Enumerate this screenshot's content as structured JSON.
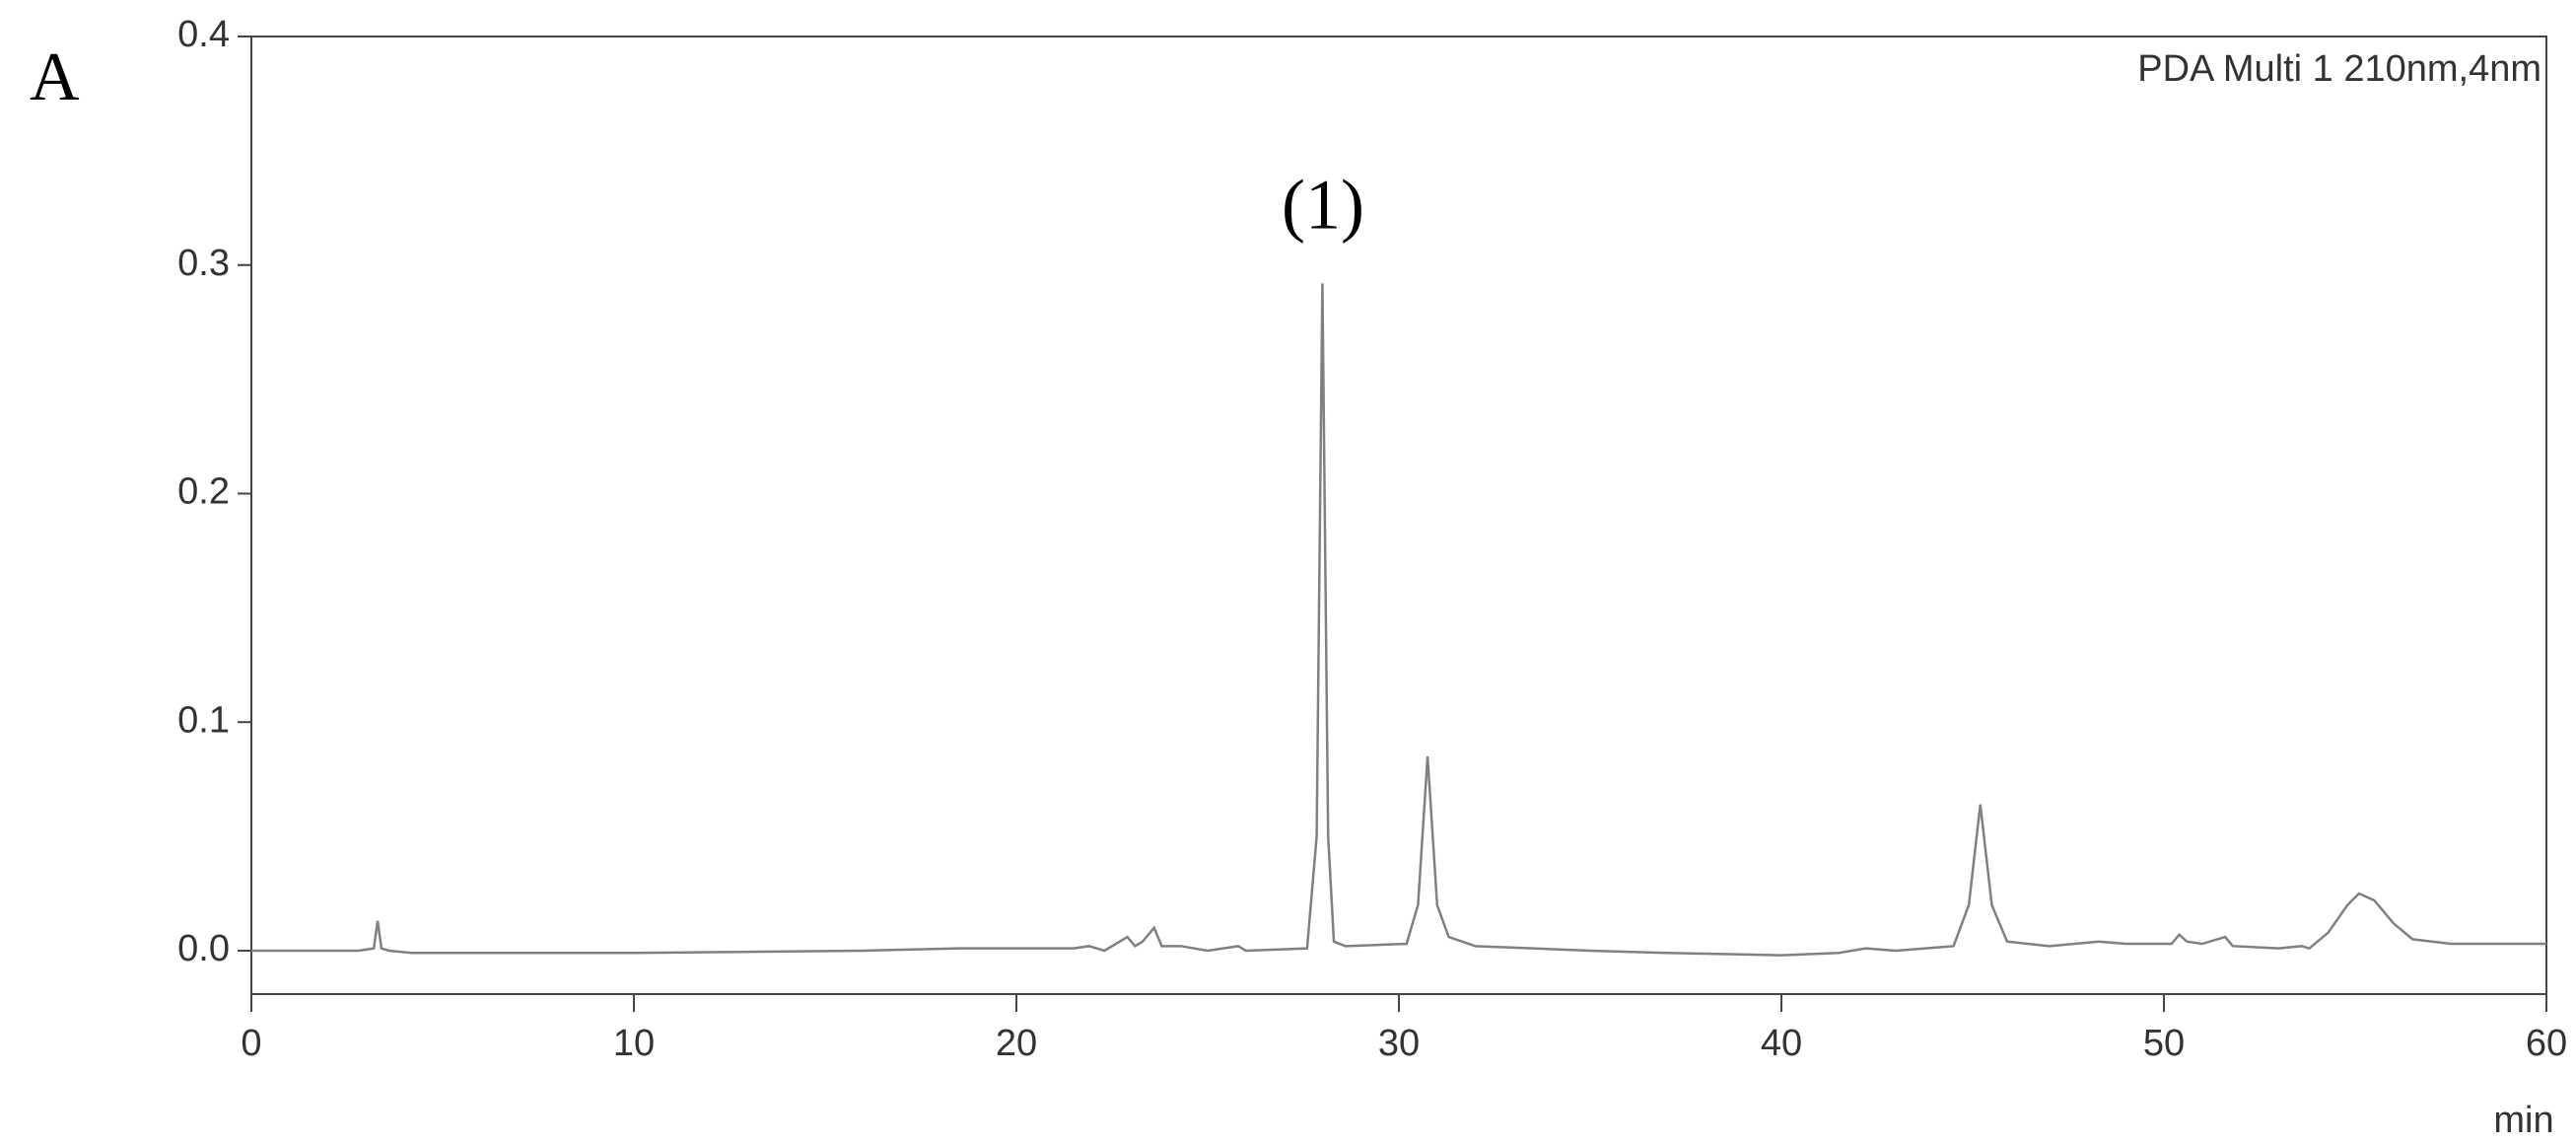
{
  "chart_data": {
    "type": "line",
    "panel_label": "A",
    "subtitle": "PDA Multi 1 210nm,4nm",
    "annotation": "(1)",
    "x_label": "min",
    "series": [
      {
        "color": "#808080",
        "x": [
          0,
          2.8,
          3.2,
          3.3,
          3.4,
          3.6,
          4.2,
          10,
          16,
          18.5,
          20,
          21.5,
          21.9,
          22.3,
          22.9,
          23.1,
          23.3,
          23.6,
          23.8,
          24.3,
          25,
          25.8,
          26,
          27.6,
          27.85,
          28.0,
          28.15,
          28.3,
          28.6,
          30.2,
          30.5,
          30.75,
          31.0,
          31.3,
          32,
          35,
          37,
          40,
          41.5,
          42.2,
          43,
          44.5,
          44.9,
          45.2,
          45.5,
          45.9,
          47,
          48.3,
          49,
          50.2,
          50.4,
          50.6,
          51,
          51.6,
          51.8,
          53,
          53.6,
          53.8,
          54.3,
          54.8,
          55.1,
          55.5,
          56,
          56.5,
          57.5,
          60
        ],
        "values": [
          0,
          0,
          0.001,
          0.013,
          0.001,
          0,
          -0.001,
          -0.001,
          0,
          0.001,
          0.001,
          0.001,
          0.002,
          0,
          0.006,
          0.002,
          0.004,
          0.01,
          0.002,
          0.002,
          0,
          0.002,
          0,
          0.001,
          0.05,
          0.292,
          0.05,
          0.004,
          0.002,
          0.003,
          0.02,
          0.085,
          0.02,
          0.006,
          0.002,
          0,
          -0.001,
          -0.002,
          -0.001,
          0.001,
          0,
          0.002,
          0.02,
          0.064,
          0.02,
          0.004,
          0.002,
          0.004,
          0.003,
          0.003,
          0.007,
          0.004,
          0.003,
          0.006,
          0.002,
          0.001,
          0.002,
          0.001,
          0.008,
          0.02,
          0.025,
          0.022,
          0.012,
          0.005,
          0.003,
          0.003
        ]
      }
    ],
    "xlim": [
      0,
      60
    ],
    "xticks": [
      0,
      10,
      20,
      30,
      40,
      50,
      60
    ],
    "ylim": [
      -0.019,
      0.4
    ],
    "yticks": [
      {
        "value": 0,
        "label": "0.0"
      },
      0.1,
      0.2,
      0.3,
      0.4
    ]
  }
}
